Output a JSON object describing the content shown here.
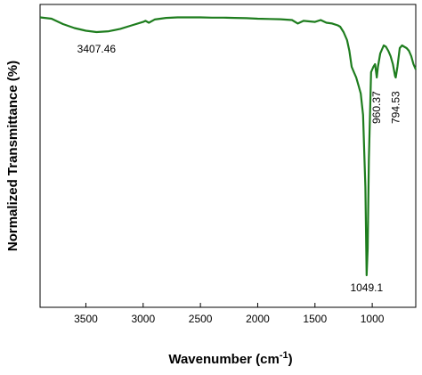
{
  "chart_data": {
    "type": "line",
    "xlabel_main": "Wavenumber (cm",
    "xlabel_sup": "-1",
    "xlabel_close": ")",
    "ylabel": "Normalized Transmittance (%)",
    "xlim": [
      3900,
      620
    ],
    "ylim": [
      0,
      1
    ],
    "x_reversed": true,
    "y_ticks_shown": false,
    "grid": false,
    "x_ticks": [
      3500,
      3000,
      2500,
      2000,
      1500,
      1000
    ],
    "x_tick_labels": [
      "3500",
      "3000",
      "2500",
      "2000",
      "1500",
      "1000"
    ],
    "series": [
      {
        "color": "#1e7d1e",
        "x": [
          3900,
          3800,
          3700,
          3600,
          3500,
          3407.46,
          3300,
          3200,
          3100,
          3000,
          2980,
          2950,
          2900,
          2800,
          2700,
          2600,
          2500,
          2400,
          2300,
          2200,
          2100,
          2000,
          1900,
          1800,
          1700,
          1650,
          1600,
          1500,
          1450,
          1400,
          1350,
          1300,
          1280,
          1250,
          1220,
          1200,
          1180,
          1160,
          1140,
          1120,
          1100,
          1080,
          1060,
          1049.1,
          1040,
          1030,
          1010,
          990,
          975,
          960.37,
          950,
          930,
          900,
          880,
          860,
          840,
          820,
          800,
          794.53,
          780,
          760,
          740,
          720,
          700,
          680,
          660,
          640,
          620
        ],
        "y": [
          0.985,
          0.98,
          0.96,
          0.945,
          0.935,
          0.93,
          0.933,
          0.942,
          0.955,
          0.968,
          0.972,
          0.965,
          0.977,
          0.983,
          0.985,
          0.985,
          0.985,
          0.984,
          0.984,
          0.983,
          0.982,
          0.98,
          0.979,
          0.978,
          0.975,
          0.962,
          0.972,
          0.968,
          0.975,
          0.965,
          0.962,
          0.955,
          0.95,
          0.93,
          0.9,
          0.86,
          0.8,
          0.78,
          0.76,
          0.73,
          0.7,
          0.62,
          0.35,
          0.02,
          0.12,
          0.45,
          0.78,
          0.8,
          0.81,
          0.76,
          0.8,
          0.85,
          0.88,
          0.875,
          0.86,
          0.84,
          0.81,
          0.765,
          0.76,
          0.8,
          0.87,
          0.88,
          0.875,
          0.87,
          0.86,
          0.84,
          0.81,
          0.79
        ]
      }
    ],
    "annotations": [
      {
        "text": "3407.46",
        "x": 3407.46,
        "rotated": false
      },
      {
        "text": "1049.1",
        "x": 1049.1,
        "rotated": false
      },
      {
        "text": "960.37",
        "x": 960.37,
        "rotated": true
      },
      {
        "text": "794.53",
        "x": 794.53,
        "rotated": true
      }
    ]
  }
}
